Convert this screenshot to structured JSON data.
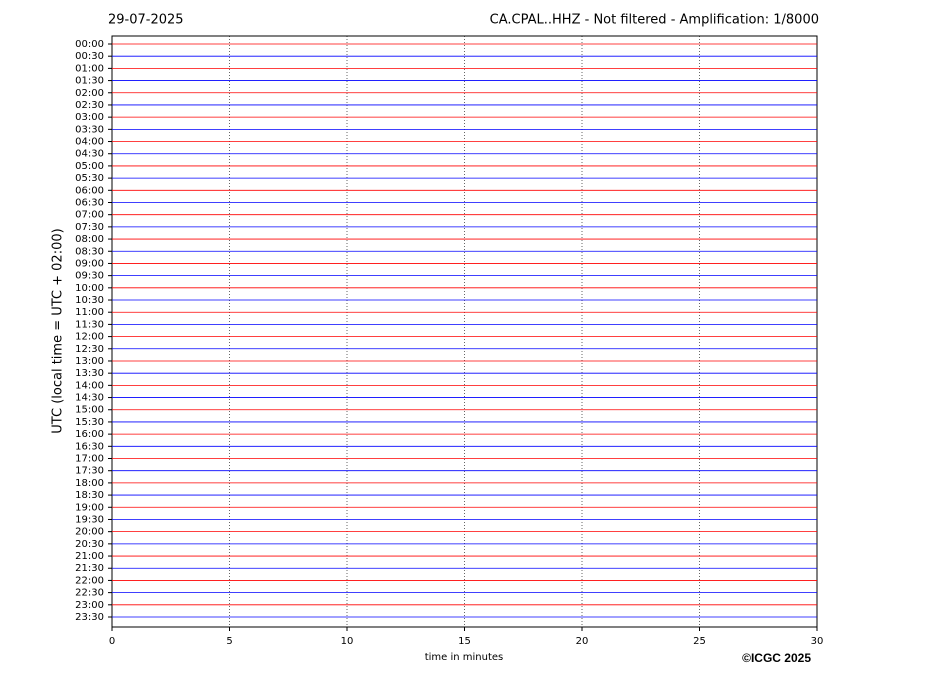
{
  "chart_data": {
    "type": "helicorder",
    "title": "29-07-2025",
    "subtitle": "CA.CPAL..HHZ - Not filtered - Amplification: 1/8000",
    "y_label": "UTC (local time = UTC + 02:00)",
    "x_label": "time in minutes",
    "credit": "©ICGC 2025",
    "categories": [
      "00:00",
      "00:30",
      "01:00",
      "01:30",
      "02:00",
      "02:30",
      "03:00",
      "03:30",
      "04:00",
      "04:30",
      "05:00",
      "05:30",
      "06:00",
      "06:30",
      "07:00",
      "07:30",
      "08:00",
      "08:30",
      "09:00",
      "09:30",
      "10:00",
      "10:30",
      "11:00",
      "11:30",
      "12:00",
      "12:30",
      "13:00",
      "13:30",
      "14:00",
      "14:30",
      "15:00",
      "15:30",
      "16:00",
      "16:30",
      "17:00",
      "17:30",
      "18:00",
      "18:30",
      "19:00",
      "19:30",
      "20:00",
      "20:30",
      "21:00",
      "21:30",
      "22:00",
      "22:30",
      "23:00",
      "23:30"
    ],
    "colors": [
      "#ff0000",
      "#0000ff"
    ],
    "xlim": [
      0,
      30
    ],
    "xticks": [
      0,
      5,
      10,
      15,
      20,
      25,
      30
    ],
    "grid": true
  }
}
